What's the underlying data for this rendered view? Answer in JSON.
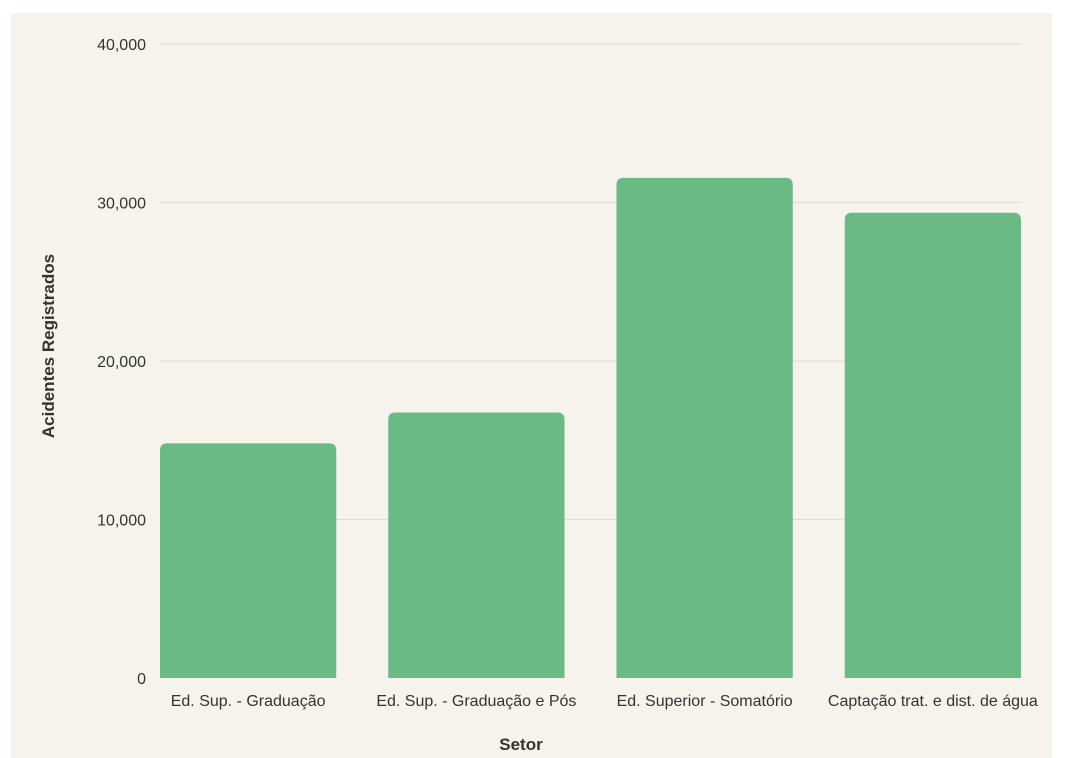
{
  "chart_data": {
    "type": "bar",
    "categories": [
      "Ed. Sup. - Graduação",
      "Ed. Sup. - Graduação e Pós",
      "Ed. Superior - Somatório",
      "Captação trat. e dist. de água"
    ],
    "values": [
      14800,
      16750,
      31550,
      29350
    ],
    "title": "",
    "xlabel": "Setor",
    "ylabel": "Acidentes Registrados",
    "ylim": [
      0,
      40000
    ],
    "yticks": [
      0,
      10000,
      20000,
      30000,
      40000
    ],
    "ytick_labels": [
      "0",
      "10,000",
      "20,000",
      "30,000",
      "40,000"
    ],
    "grid": true,
    "legend": "none",
    "colors": {
      "bar": "#69ba85",
      "background": "#f6f3ec",
      "grid": "#e2ddd3",
      "text": "#333333"
    }
  }
}
